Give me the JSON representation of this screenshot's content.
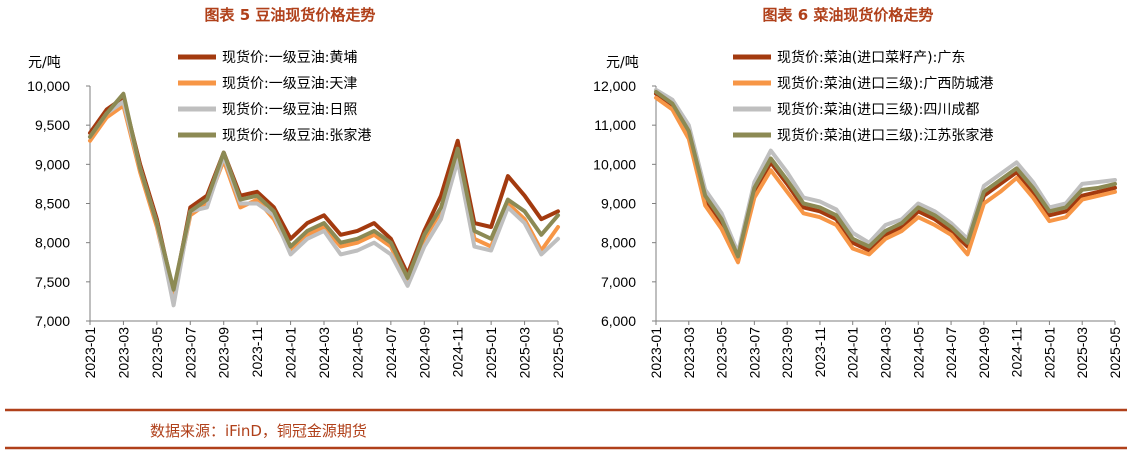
{
  "footer": {
    "source": "数据来源：iFinD，铜冠金源期货",
    "rule_color": "#b0401a"
  },
  "chart_data": [
    {
      "type": "line",
      "title": "图表 5  豆油现货价格走势",
      "ylabel": "元/吨",
      "ylim": [
        7000,
        10000
      ],
      "yticks": [
        7000,
        7500,
        8000,
        8500,
        9000,
        9500,
        10000
      ],
      "ytick_labels": [
        "7,000",
        "7,500",
        "8,000",
        "8,500",
        "9,000",
        "9,500",
        "10,000"
      ],
      "xlim": [
        "2023-01",
        "2025-05"
      ],
      "xtick_labels": [
        "2023-01",
        "2023-03",
        "2023-05",
        "2023-07",
        "2023-09",
        "2023-11",
        "2024-01",
        "2024-03",
        "2024-05",
        "2024-07",
        "2024-09",
        "2024-11",
        "2025-01",
        "2025-03",
        "2025-05"
      ],
      "legend_position": "top",
      "grid": false,
      "series": [
        {
          "name": "现货价:一级豆油:黄埔",
          "color": "#a33a0f",
          "x": [
            "2023-01",
            "2023-02",
            "2023-03",
            "2023-04",
            "2023-05",
            "2023-06",
            "2023-07",
            "2023-08",
            "2023-09",
            "2023-10",
            "2023-11",
            "2023-12",
            "2024-01",
            "2024-02",
            "2024-03",
            "2024-04",
            "2024-05",
            "2024-06",
            "2024-07",
            "2024-08",
            "2024-09",
            "2024-10",
            "2024-11",
            "2024-12",
            "2025-01",
            "2025-02",
            "2025-03",
            "2025-04",
            "2025-05"
          ],
          "values": [
            9400,
            9700,
            9850,
            9000,
            8300,
            7350,
            8450,
            8600,
            9150,
            8600,
            8650,
            8450,
            8050,
            8250,
            8350,
            8100,
            8150,
            8250,
            8050,
            7600,
            8150,
            8600,
            9300,
            8250,
            8200,
            8850,
            8600,
            8300,
            8400
          ]
        },
        {
          "name": "现货价:一级豆油:天津",
          "color": "#f79646",
          "x": [
            "2023-01",
            "2023-02",
            "2023-03",
            "2023-04",
            "2023-05",
            "2023-06",
            "2023-07",
            "2023-08",
            "2023-09",
            "2023-10",
            "2023-11",
            "2023-12",
            "2024-01",
            "2024-02",
            "2024-03",
            "2024-04",
            "2024-05",
            "2024-06",
            "2024-07",
            "2024-08",
            "2024-09",
            "2024-10",
            "2024-11",
            "2024-12",
            "2025-01",
            "2025-02",
            "2025-03",
            "2025-04",
            "2025-05"
          ],
          "values": [
            9300,
            9600,
            9750,
            8900,
            8200,
            7300,
            8350,
            8500,
            9050,
            8450,
            8550,
            8300,
            7900,
            8100,
            8200,
            7950,
            8000,
            8100,
            7950,
            7500,
            8050,
            8400,
            9100,
            8050,
            7950,
            8500,
            8300,
            7900,
            8200
          ]
        },
        {
          "name": "现货价:一级豆油:日照",
          "color": "#bfbfbf",
          "x": [
            "2023-01",
            "2023-02",
            "2023-03",
            "2023-04",
            "2023-05",
            "2023-06",
            "2023-07",
            "2023-08",
            "2023-09",
            "2023-10",
            "2023-11",
            "2023-12",
            "2024-01",
            "2024-02",
            "2024-03",
            "2024-04",
            "2024-05",
            "2024-06",
            "2024-07",
            "2024-08",
            "2024-09",
            "2024-10",
            "2024-11",
            "2024-12",
            "2025-01",
            "2025-02",
            "2025-03",
            "2025-04",
            "2025-05"
          ],
          "values": [
            9350,
            9650,
            9800,
            8950,
            8250,
            7200,
            8400,
            8450,
            9100,
            8500,
            8500,
            8350,
            7850,
            8050,
            8150,
            7850,
            7900,
            8000,
            7850,
            7450,
            7950,
            8300,
            9050,
            7950,
            7900,
            8450,
            8250,
            7850,
            8050
          ]
        },
        {
          "name": "现货价:一级豆油:张家港",
          "color": "#8c8a54",
          "x": [
            "2023-01",
            "2023-02",
            "2023-03",
            "2023-04",
            "2023-05",
            "2023-06",
            "2023-07",
            "2023-08",
            "2023-09",
            "2023-10",
            "2023-11",
            "2023-12",
            "2024-01",
            "2024-02",
            "2024-03",
            "2024-04",
            "2024-05",
            "2024-06",
            "2024-07",
            "2024-08",
            "2024-09",
            "2024-10",
            "2024-11",
            "2024-12",
            "2025-01",
            "2025-02",
            "2025-03",
            "2025-04",
            "2025-05"
          ],
          "values": [
            9350,
            9650,
            9900,
            8950,
            8250,
            7400,
            8400,
            8550,
            9150,
            8550,
            8600,
            8400,
            7950,
            8150,
            8250,
            8000,
            8050,
            8150,
            8000,
            7550,
            8100,
            8450,
            9200,
            8150,
            8050,
            8550,
            8400,
            8100,
            8350
          ]
        }
      ]
    },
    {
      "type": "line",
      "title": "图表 6  菜油现货价格走势",
      "ylabel": "元/吨",
      "ylim": [
        6000,
        12000
      ],
      "yticks": [
        6000,
        7000,
        8000,
        9000,
        10000,
        11000,
        12000
      ],
      "ytick_labels": [
        "6,000",
        "7,000",
        "8,000",
        "9,000",
        "10,000",
        "11,000",
        "12,000"
      ],
      "xlim": [
        "2023-01",
        "2025-05"
      ],
      "xtick_labels": [
        "2023-01",
        "2023-03",
        "2023-05",
        "2023-07",
        "2023-09",
        "2023-11",
        "2024-01",
        "2024-03",
        "2024-05",
        "2024-07",
        "2024-09",
        "2024-11",
        "2025-01",
        "2025-03",
        "2025-05"
      ],
      "legend_position": "top",
      "grid": false,
      "series": [
        {
          "name": "现货价:菜油(进口菜籽产):广东",
          "color": "#a33a0f",
          "x": [
            "2023-01",
            "2023-02",
            "2023-03",
            "2023-04",
            "2023-05",
            "2023-06",
            "2023-07",
            "2023-08",
            "2023-09",
            "2023-10",
            "2023-11",
            "2023-12",
            "2024-01",
            "2024-02",
            "2024-03",
            "2024-04",
            "2024-05",
            "2024-06",
            "2024-07",
            "2024-08",
            "2024-09",
            "2024-10",
            "2024-11",
            "2024-12",
            "2025-01",
            "2025-02",
            "2025-03",
            "2025-04",
            "2025-05"
          ],
          "values": [
            11800,
            11500,
            10800,
            9100,
            8500,
            7600,
            9300,
            10050,
            9500,
            8900,
            8800,
            8600,
            8000,
            7800,
            8200,
            8400,
            8800,
            8600,
            8300,
            7900,
            9200,
            9500,
            9800,
            9300,
            8700,
            8800,
            9200,
            9300,
            9400
          ]
        },
        {
          "name": "现货价:菜油(进口三级):广西防城港",
          "color": "#f79646",
          "x": [
            "2023-01",
            "2023-02",
            "2023-03",
            "2023-04",
            "2023-05",
            "2023-06",
            "2023-07",
            "2023-08",
            "2023-09",
            "2023-10",
            "2023-11",
            "2023-12",
            "2024-01",
            "2024-02",
            "2024-03",
            "2024-04",
            "2024-05",
            "2024-06",
            "2024-07",
            "2024-08",
            "2024-09",
            "2024-10",
            "2024-11",
            "2024-12",
            "2025-01",
            "2025-02",
            "2025-03",
            "2025-04",
            "2025-05"
          ],
          "values": [
            11700,
            11400,
            10650,
            8950,
            8350,
            7500,
            9150,
            9850,
            9300,
            8750,
            8650,
            8450,
            7850,
            7700,
            8100,
            8300,
            8650,
            8450,
            8200,
            7700,
            9000,
            9300,
            9650,
            9150,
            8550,
            8650,
            9100,
            9200,
            9300
          ]
        },
        {
          "name": "现货价:菜油(进口三级):四川成都",
          "color": "#bfbfbf",
          "x": [
            "2023-01",
            "2023-02",
            "2023-03",
            "2023-04",
            "2023-05",
            "2023-06",
            "2023-07",
            "2023-08",
            "2023-09",
            "2023-10",
            "2023-11",
            "2023-12",
            "2024-01",
            "2024-02",
            "2024-03",
            "2024-04",
            "2024-05",
            "2024-06",
            "2024-07",
            "2024-08",
            "2024-09",
            "2024-10",
            "2024-11",
            "2024-12",
            "2025-01",
            "2025-02",
            "2025-03",
            "2025-04",
            "2025-05"
          ],
          "values": [
            11900,
            11650,
            11000,
            9350,
            8750,
            7750,
            9550,
            10350,
            9800,
            9150,
            9050,
            8850,
            8250,
            8000,
            8450,
            8600,
            9000,
            8800,
            8500,
            8100,
            9450,
            9750,
            10050,
            9550,
            8900,
            9000,
            9500,
            9550,
            9600
          ]
        },
        {
          "name": "现货价:菜油(进口三级):江苏张家港",
          "color": "#8c8a54",
          "x": [
            "2023-01",
            "2023-02",
            "2023-03",
            "2023-04",
            "2023-05",
            "2023-06",
            "2023-07",
            "2023-08",
            "2023-09",
            "2023-10",
            "2023-11",
            "2023-12",
            "2024-01",
            "2024-02",
            "2024-03",
            "2024-04",
            "2024-05",
            "2024-06",
            "2024-07",
            "2024-08",
            "2024-09",
            "2024-10",
            "2024-11",
            "2024-12",
            "2025-01",
            "2025-02",
            "2025-03",
            "2025-04",
            "2025-05"
          ],
          "values": [
            11850,
            11550,
            10850,
            9200,
            8600,
            7650,
            9400,
            10150,
            9600,
            9000,
            8900,
            8700,
            8100,
            7900,
            8300,
            8500,
            8900,
            8700,
            8400,
            8000,
            9300,
            9600,
            9900,
            9400,
            8800,
            8900,
            9350,
            9400,
            9500
          ]
        }
      ]
    }
  ]
}
